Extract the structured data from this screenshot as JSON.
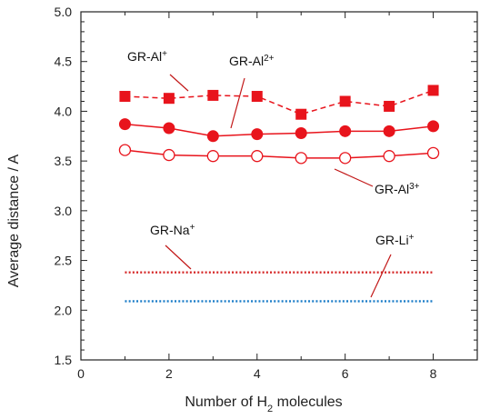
{
  "chart_data": {
    "type": "line",
    "xlabel": "Number of H",
    "xlabel_sub": "2",
    "xlabel_suffix": " molecules",
    "ylabel": "Average distance / A",
    "xlim": [
      0,
      9
    ],
    "ylim": [
      1.5,
      5.0
    ],
    "xticks": [
      0,
      2,
      4,
      6,
      8
    ],
    "yticks": [
      1.5,
      2.0,
      2.5,
      3.0,
      3.5,
      4.0,
      4.5,
      5.0
    ],
    "grid": false,
    "series": [
      {
        "name": "GR-Al+",
        "x": [
          1,
          2,
          3,
          4,
          5,
          6,
          7,
          8
        ],
        "values": [
          4.15,
          4.13,
          4.16,
          4.15,
          3.97,
          4.1,
          4.05,
          4.21
        ],
        "color": "#e8141c",
        "line": "dashed",
        "marker": "square-filled"
      },
      {
        "name": "GR-Al2+",
        "x": [
          1,
          2,
          3,
          4,
          5,
          6,
          7,
          8
        ],
        "values": [
          3.87,
          3.83,
          3.75,
          3.77,
          3.78,
          3.8,
          3.8,
          3.85
        ],
        "color": "#e8141c",
        "line": "solid",
        "marker": "circle-filled"
      },
      {
        "name": "GR-Al3+",
        "x": [
          1,
          2,
          3,
          4,
          5,
          6,
          7,
          8
        ],
        "values": [
          3.61,
          3.56,
          3.55,
          3.55,
          3.53,
          3.53,
          3.55,
          3.58
        ],
        "color": "#e8141c",
        "line": "solid",
        "marker": "circle-open"
      },
      {
        "name": "GR-Na+",
        "x": [
          1,
          8
        ],
        "values": [
          2.38,
          2.38
        ],
        "color": "#d62828",
        "line": "dotted",
        "marker": "none"
      },
      {
        "name": "GR-Li+",
        "x": [
          1,
          8
        ],
        "values": [
          2.09,
          2.09
        ],
        "color": "#1a7cc8",
        "line": "dotted",
        "marker": "none"
      }
    ],
    "annotations": [
      {
        "base": "GR-Al",
        "sup": "+"
      },
      {
        "base": "GR-Al",
        "sup": "2+"
      },
      {
        "base": "GR-Al",
        "sup": "3+"
      },
      {
        "base": "GR-Na",
        "sup": "+"
      },
      {
        "base": "GR-Li",
        "sup": "+"
      }
    ]
  }
}
